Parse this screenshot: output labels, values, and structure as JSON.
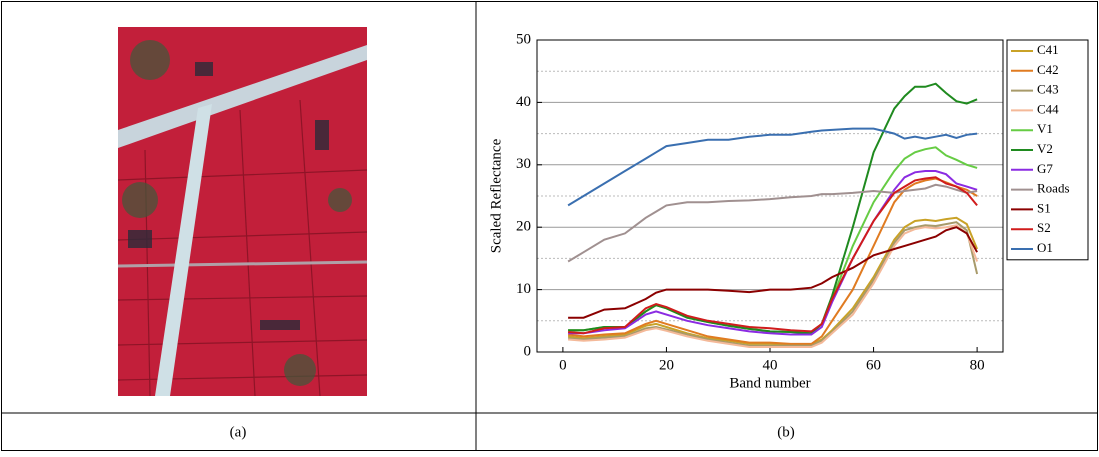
{
  "captions": [
    "(a)",
    "(b)"
  ],
  "chart_data": {
    "type": "line",
    "xlabel": "Band number",
    "ylabel": "Scaled Reflectance",
    "xlim": [
      -5,
      85
    ],
    "xticks": [
      0,
      20,
      40,
      60,
      80
    ],
    "ylim": [
      0,
      50
    ],
    "yticks": [
      0,
      10,
      20,
      30,
      40,
      50
    ],
    "yminorticks": [
      5,
      15,
      25,
      35,
      45
    ],
    "grid": true,
    "legend": "outside-right",
    "x": [
      1,
      4,
      8,
      12,
      16,
      18,
      20,
      24,
      28,
      32,
      36,
      40,
      44,
      48,
      50,
      52,
      56,
      60,
      64,
      66,
      68,
      70,
      72,
      74,
      76,
      78,
      80
    ],
    "series": [
      {
        "name": "C41",
        "color": "#c9a227",
        "values": [
          2.5,
          2.2,
          2.5,
          2.8,
          4.2,
          4.5,
          4,
          3,
          2.2,
          1.8,
          1.3,
          1.3,
          1.2,
          1.2,
          2,
          3.5,
          7,
          12,
          18,
          20,
          21,
          21.2,
          21,
          21.3,
          21.5,
          20.5,
          16.5
        ]
      },
      {
        "name": "C42",
        "color": "#e07b21",
        "values": [
          2.8,
          2.5,
          2.8,
          3,
          4.5,
          5,
          4.5,
          3.5,
          2.5,
          2,
          1.5,
          1.5,
          1.3,
          1.3,
          2.5,
          5,
          10,
          17,
          24,
          26,
          27,
          27.5,
          27.8,
          27.2,
          26.5,
          26,
          25
        ]
      },
      {
        "name": "C43",
        "color": "#a89a6a",
        "values": [
          2.2,
          2,
          2.3,
          2.5,
          3.8,
          4,
          3.6,
          2.8,
          2,
          1.5,
          1,
          1,
          1,
          1,
          1.8,
          3.2,
          6.5,
          11.5,
          17.5,
          19.5,
          20,
          20.3,
          20.2,
          20.5,
          20.8,
          19.5,
          12.5
        ]
      },
      {
        "name": "C44",
        "color": "#f4b999",
        "values": [
          2,
          1.8,
          2,
          2.3,
          3.5,
          3.8,
          3.4,
          2.5,
          1.8,
          1.3,
          0.8,
          0.8,
          0.8,
          0.8,
          1.5,
          3,
          6,
          11,
          17,
          19,
          19.7,
          20,
          19.8,
          20,
          20.3,
          19,
          14.5
        ]
      },
      {
        "name": "V1",
        "color": "#66cc44",
        "values": [
          3.5,
          3.5,
          4,
          4,
          6.5,
          7.5,
          7,
          5.5,
          4.8,
          4.2,
          3.7,
          3.3,
          3.2,
          3,
          4.5,
          8.5,
          17,
          24,
          29,
          31,
          32,
          32.5,
          32.8,
          31.5,
          30.8,
          30,
          29.5
        ]
      },
      {
        "name": "V2",
        "color": "#1f8a1f",
        "values": [
          3.5,
          3.5,
          4,
          4,
          6.5,
          7.5,
          7,
          5.5,
          4.8,
          4.2,
          3.7,
          3.3,
          3.2,
          3,
          4.5,
          9,
          20,
          32,
          39,
          41,
          42.5,
          42.5,
          43,
          41.5,
          40.2,
          39.8,
          40.5
        ]
      },
      {
        "name": "G7",
        "color": "#8b2be2",
        "values": [
          3,
          3,
          3.5,
          3.8,
          6,
          6.5,
          6,
          5,
          4.3,
          3.8,
          3.3,
          3,
          2.8,
          2.8,
          4,
          8,
          15,
          21,
          26,
          28,
          28.8,
          29,
          29,
          28.5,
          27,
          26.5,
          26
        ]
      },
      {
        "name": "Roads",
        "color": "#a09090",
        "values": [
          14.5,
          16,
          18,
          19,
          21.5,
          22.5,
          23.5,
          24,
          24,
          24.2,
          24.3,
          24.5,
          24.8,
          25,
          25.3,
          25.3,
          25.5,
          25.8,
          25.5,
          25.8,
          26,
          26.2,
          26.8,
          26.5,
          26,
          25.5,
          25.8
        ]
      },
      {
        "name": "S1",
        "color": "#8b0000",
        "values": [
          5.5,
          5.5,
          6.8,
          7,
          8.5,
          9.5,
          10,
          10,
          10,
          9.8,
          9.6,
          10,
          10,
          10.3,
          11,
          12,
          13.5,
          15.5,
          16.5,
          17,
          17.5,
          18,
          18.5,
          19.5,
          20,
          19,
          16
        ]
      },
      {
        "name": "S2",
        "color": "#d01c1c",
        "values": [
          3.2,
          3,
          3.8,
          4,
          7,
          7.7,
          7.2,
          5.8,
          5,
          4.5,
          4,
          3.8,
          3.5,
          3.3,
          4.5,
          8.5,
          15,
          21,
          25.5,
          26.5,
          27.5,
          27.8,
          28,
          27,
          26.5,
          25.5,
          23.5
        ]
      },
      {
        "name": "O1",
        "color": "#3a6fb0",
        "values": [
          23.5,
          25,
          27,
          29,
          31,
          32,
          33,
          33.5,
          34,
          34,
          34.5,
          34.8,
          34.8,
          35.3,
          35.5,
          35.6,
          35.8,
          35.8,
          35,
          34.2,
          34.5,
          34.2,
          34.5,
          34.8,
          34.3,
          34.8,
          35
        ]
      }
    ]
  }
}
